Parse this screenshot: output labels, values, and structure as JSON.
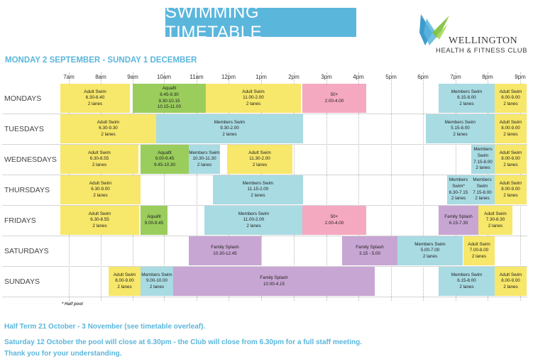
{
  "header": {
    "title": "SWIMMING TIMETABLE",
    "date_range": "MONDAY 2 SEPTEMBER - SUNDAY 1 DECEMBER",
    "logo": {
      "name": "WELLINGTON",
      "subtitle": "HEALTH & FITNESS CLUB",
      "colors": [
        "#2a8fc9",
        "#5bb6dc",
        "#7bbf3a",
        "#a9d85b"
      ]
    }
  },
  "hours": [
    "7am",
    "8am",
    "9am",
    "10am",
    "11am",
    "12pm",
    "1pm",
    "2pm",
    "3pm",
    "4pm",
    "5pm",
    "6pm",
    "7pm",
    "8pm",
    "9pm"
  ],
  "colors": {
    "adult_swim": "#f7e76a",
    "aquafit": "#9acd5c",
    "members_swim": "#a9dbe3",
    "over_50": "#f5a9c0",
    "family_splash": "#c8a6d3",
    "accent": "#5bb6dc"
  },
  "days": [
    {
      "label": "MONDAYS",
      "sessions": [
        {
          "title": "Adult Swim",
          "lines": [
            "6.30-8.40",
            "2 lanes"
          ],
          "color": "yellow"
        },
        {
          "title": "Aquafit",
          "lines": [
            "8.45-9.30",
            "9.30-10.15",
            "10.15-11.00"
          ],
          "color": "green"
        },
        {
          "title": "Adult Swim",
          "lines": [
            "11.00-2.00",
            "2 lanes"
          ],
          "color": "yellow"
        },
        {
          "title": "50+",
          "lines": [
            "2.00-4.00"
          ],
          "color": "pink"
        },
        {
          "title": "Members Swim",
          "lines": [
            "6.15-8.00",
            "2 lanes"
          ],
          "color": "blue"
        },
        {
          "title": "Adult Swim",
          "lines": [
            "8.00-9.00",
            "2 lanes"
          ],
          "color": "yellow"
        }
      ]
    },
    {
      "label": "TUESDAYS",
      "sessions": [
        {
          "title": "Adult Swim",
          "lines": [
            "6.30-9.30",
            "2 lanes"
          ],
          "color": "yellow"
        },
        {
          "title": "Members Swim",
          "lines": [
            "9.30-2.00",
            "2 lanes"
          ],
          "color": "blue"
        },
        {
          "title": "Members Swim",
          "lines": [
            "5.15-8.00",
            "2 lanes"
          ],
          "color": "blue"
        },
        {
          "title": "Adult Swim",
          "lines": [
            "8.00-9.00",
            "2 lanes"
          ],
          "color": "yellow"
        }
      ]
    },
    {
      "label": "WEDNESDAYS",
      "sessions": [
        {
          "title": "Adult Swim",
          "lines": [
            "6.30-8.55",
            "2 lanes"
          ],
          "color": "yellow"
        },
        {
          "title": "Aquafit",
          "lines": [
            "9.00-9.45",
            "9.45-10.30"
          ],
          "color": "green"
        },
        {
          "title": "Members Swim",
          "lines": [
            "10.30-11.30",
            "2 lanes"
          ],
          "color": "blue"
        },
        {
          "title": "Adult Swim",
          "lines": [
            "11.30-2.00",
            "2 lanes"
          ],
          "color": "yellow"
        },
        {
          "title": "Members Swim",
          "lines": [
            "7.15-8.00",
            "2 lanes"
          ],
          "color": "blue"
        },
        {
          "title": "Adult Swim",
          "lines": [
            "8.00-9.00",
            "2 lanes"
          ],
          "color": "yellow"
        }
      ]
    },
    {
      "label": "THURSDAYS",
      "sessions": [
        {
          "title": "Adult Swim",
          "lines": [
            "6.30-9.00",
            "2 lanes"
          ],
          "color": "yellow"
        },
        {
          "title": "Members Swim",
          "lines": [
            "11.15-2.00",
            "2 lanes"
          ],
          "color": "blue"
        },
        {
          "title": "Members Swim*",
          "lines": [
            "6.30-7.15",
            "2 lanes"
          ],
          "color": "blue"
        },
        {
          "title": "Members Swim",
          "lines": [
            "7.15-8.00",
            "2 lanes"
          ],
          "color": "blue"
        },
        {
          "title": "Adult Swim",
          "lines": [
            "8.00-9.00",
            "2 lanes"
          ],
          "color": "yellow"
        }
      ]
    },
    {
      "label": "FRIDAYS",
      "sessions": [
        {
          "title": "Adult Swim",
          "lines": [
            "6.30-8.55",
            "2 lanes"
          ],
          "color": "yellow"
        },
        {
          "title": "Aquafit",
          "lines": [
            "9.00-9.45"
          ],
          "color": "green"
        },
        {
          "title": "Members Swim",
          "lines": [
            "11.00-2.00",
            "2 lanes"
          ],
          "color": "blue"
        },
        {
          "title": "50+",
          "lines": [
            "2.00-4.00"
          ],
          "color": "pink"
        },
        {
          "title": "Family Splash",
          "lines": [
            "6.15-7.30"
          ],
          "color": "purple"
        },
        {
          "title": "Adult Swim",
          "lines": [
            "7.30-8.30",
            "2 lanes"
          ],
          "color": "yellow"
        }
      ]
    },
    {
      "label": "SATURDAYS",
      "sessions": [
        {
          "title": "Family Splash",
          "lines": [
            "10.30-12.45"
          ],
          "color": "purple"
        },
        {
          "title": "Family Splash",
          "lines": [
            "3.15 - 5.00"
          ],
          "color": "purple"
        },
        {
          "title": "Members Swim",
          "lines": [
            "5.00-7.00",
            "2 lanes"
          ],
          "color": "blue"
        },
        {
          "title": "Adult Swim",
          "lines": [
            "7.00-8.00",
            "2 lanes"
          ],
          "color": "yellow"
        }
      ]
    },
    {
      "label": "SUNDAYS",
      "sessions": [
        {
          "title": "Adult Swim",
          "lines": [
            "8.00-9.00",
            "2 lanes"
          ],
          "color": "yellow"
        },
        {
          "title": "Members Swim",
          "lines": [
            "9.00-10.00",
            "2 lanes"
          ],
          "color": "blue"
        },
        {
          "title": "Family Splash",
          "lines": [
            "10.00-4.15"
          ],
          "color": "purple"
        },
        {
          "title": "Members Swim",
          "lines": [
            "6.15-8.00",
            "2 lanes"
          ],
          "color": "blue"
        },
        {
          "title": "Adult Swim",
          "lines": [
            "8.00-9.00",
            "2 lanes"
          ],
          "color": "yellow"
        }
      ]
    }
  ],
  "note": "* Half pool",
  "footer": [
    "Half Term 21 October - 3 November (see timetable overleaf).",
    "Saturday 12 October the pool will close at 6.30pm - the Club will close from 6.30pm for a full staff meeting.",
    "Thank you for your understanding."
  ]
}
